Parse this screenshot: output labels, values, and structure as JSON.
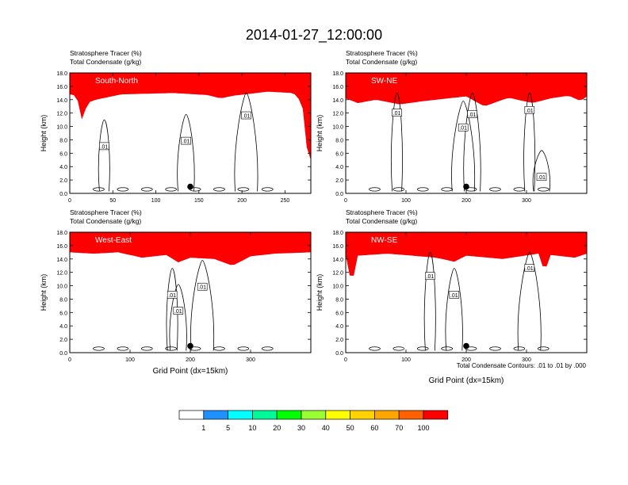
{
  "figure": {
    "title": "2014-01-27_12:00:00",
    "footnote": "Total Condensate Contours: .01 to .01 by .000"
  },
  "colors": {
    "tracer_levels": [
      "#ffffff",
      "#1e90ff",
      "#00ffff",
      "#00fa9a",
      "#00ff00",
      "#9aff32",
      "#ffff00",
      "#ffd200",
      "#ffa500",
      "#ff6000",
      "#ff0000"
    ],
    "contour": "#000000",
    "frame": "#000000"
  },
  "colorbar": {
    "labels": [
      "1",
      "5",
      "10",
      "20",
      "30",
      "40",
      "50",
      "60",
      "70",
      "100"
    ]
  },
  "chart_data": [
    {
      "type": "heatmap",
      "panel": "South-North",
      "label1": "Stratosphere Tracer   (%)",
      "label2": "Total Condensate   (g/kg)",
      "ylabel": "Height (km)",
      "xlabel": "",
      "xlim": [
        0,
        280
      ],
      "ylim": [
        0,
        18
      ],
      "xticks": [
        0,
        50,
        100,
        150,
        200,
        250
      ],
      "yticks": [
        "0.0",
        "2.0",
        "4.0",
        "6.0",
        "8.0",
        "10.0",
        "12.0",
        "14.0",
        "16.0",
        "18.0"
      ],
      "tropopause_km": [
        [
          0,
          14.8
        ],
        [
          8,
          14.6
        ],
        [
          15,
          10.5
        ],
        [
          20,
          13.5
        ],
        [
          30,
          14.0
        ],
        [
          60,
          14.8
        ],
        [
          120,
          15.0
        ],
        [
          160,
          14.7
        ],
        [
          175,
          14.2
        ],
        [
          190,
          14.6
        ],
        [
          230,
          15.2
        ],
        [
          260,
          15.0
        ],
        [
          270,
          13.5
        ],
        [
          275,
          7.0
        ],
        [
          280,
          5.0
        ]
      ],
      "contour_labels": [
        {
          "x": 40,
          "y": 7.0,
          "text": ".01"
        },
        {
          "x": 135,
          "y": 7.8,
          "text": ".01"
        },
        {
          "x": 205,
          "y": 11.6,
          "text": ".01"
        }
      ],
      "marker": {
        "x": 140,
        "y": 1.0
      }
    },
    {
      "type": "heatmap",
      "panel": "SW-NE",
      "label1": "Stratosphere Tracer   (%)",
      "label2": "Total Condensate   (g/kg)",
      "ylabel": "Height (km)",
      "xlabel": "",
      "xlim": [
        0,
        400
      ],
      "ylim": [
        0,
        18
      ],
      "xticks": [
        0,
        100,
        200,
        300
      ],
      "yticks": [
        "0.0",
        "2.0",
        "4.0",
        "6.0",
        "8.0",
        "10.0",
        "12.0",
        "14.0",
        "16.0",
        "18.0"
      ],
      "tropopause_km": [
        [
          0,
          14.2
        ],
        [
          20,
          13.5
        ],
        [
          50,
          14.0
        ],
        [
          90,
          13.3
        ],
        [
          130,
          13.8
        ],
        [
          200,
          14.5
        ],
        [
          230,
          13.0
        ],
        [
          270,
          14.3
        ],
        [
          310,
          13.5
        ],
        [
          340,
          14.2
        ],
        [
          370,
          14.6
        ],
        [
          390,
          13.8
        ],
        [
          400,
          14.5
        ]
      ],
      "contour_labels": [
        {
          "x": 85,
          "y": 12.0,
          "text": ".01"
        },
        {
          "x": 210,
          "y": 11.8,
          "text": ".01"
        },
        {
          "x": 195,
          "y": 9.8,
          "text": ".01"
        },
        {
          "x": 305,
          "y": 12.4,
          "text": ".01"
        },
        {
          "x": 325,
          "y": 2.4,
          "text": ".01"
        }
      ],
      "marker": {
        "x": 200,
        "y": 1.0
      }
    },
    {
      "type": "heatmap",
      "panel": "West-East",
      "label1": "Stratosphere Tracer   (%)",
      "label2": "Total Condensate   (g/kg)",
      "ylabel": "Height (km)",
      "xlabel": "Grid Point (dx=15km)",
      "xlim": [
        0,
        400
      ],
      "ylim": [
        0,
        18
      ],
      "xticks": [
        0,
        100,
        200,
        300
      ],
      "yticks": [
        "0.0",
        "2.0",
        "4.0",
        "6.0",
        "8.0",
        "10.0",
        "12.0",
        "14.0",
        "16.0",
        "18.0"
      ],
      "tropopause_km": [
        [
          0,
          15.0
        ],
        [
          40,
          14.8
        ],
        [
          80,
          15.0
        ],
        [
          120,
          14.2
        ],
        [
          160,
          14.6
        ],
        [
          180,
          13.5
        ],
        [
          200,
          14.2
        ],
        [
          240,
          14.0
        ],
        [
          270,
          13.0
        ],
        [
          300,
          14.4
        ],
        [
          340,
          14.8
        ],
        [
          400,
          15.0
        ]
      ],
      "contour_labels": [
        {
          "x": 170,
          "y": 8.6,
          "text": ".01"
        },
        {
          "x": 180,
          "y": 6.2,
          "text": ".01"
        },
        {
          "x": 220,
          "y": 9.8,
          "text": ".01"
        }
      ],
      "marker": {
        "x": 200,
        "y": 1.0
      }
    },
    {
      "type": "heatmap",
      "panel": "NW-SE",
      "label1": "Stratosphere Tracer   (%)",
      "label2": "Total Condensate   (g/kg)",
      "ylabel": "Height (km)",
      "xlabel": "Grid Point (dx=15km)",
      "xlim": [
        0,
        400
      ],
      "ylim": [
        0,
        18
      ],
      "xticks": [
        0,
        100,
        200,
        300
      ],
      "yticks": [
        "0.0",
        "2.0",
        "4.0",
        "6.0",
        "8.0",
        "10.0",
        "12.0",
        "14.0",
        "16.0",
        "18.0"
      ],
      "tropopause_km": [
        [
          0,
          14.6
        ],
        [
          10,
          10.0
        ],
        [
          20,
          14.5
        ],
        [
          70,
          14.8
        ],
        [
          150,
          14.2
        ],
        [
          180,
          13.6
        ],
        [
          200,
          14.5
        ],
        [
          260,
          14.0
        ],
        [
          320,
          14.8
        ],
        [
          330,
          12.0
        ],
        [
          340,
          14.6
        ],
        [
          380,
          14.2
        ],
        [
          400,
          14.8
        ]
      ],
      "contour_labels": [
        {
          "x": 140,
          "y": 11.4,
          "text": ".01"
        },
        {
          "x": 180,
          "y": 8.6,
          "text": ".01"
        },
        {
          "x": 305,
          "y": 12.6,
          "text": ".01"
        }
      ],
      "marker": {
        "x": 200,
        "y": 1.0
      }
    }
  ]
}
